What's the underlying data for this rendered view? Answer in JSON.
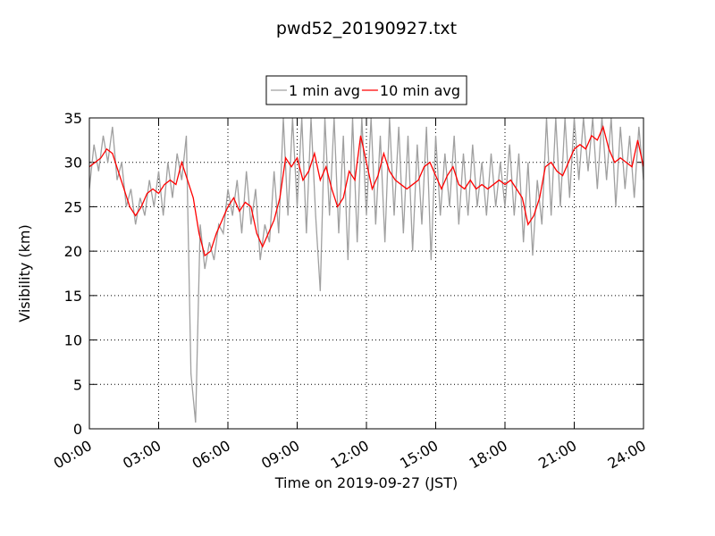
{
  "chart_data": {
    "type": "line",
    "title": "pwd52_20190927.txt",
    "x_label": "Time on 2019-09-27 (JST)",
    "y_label": "Visibility (km)",
    "xlim": [
      0,
      24
    ],
    "xticks": [
      {
        "value": 0,
        "label": "00:00"
      },
      {
        "value": 3,
        "label": "03:00"
      },
      {
        "value": 6,
        "label": "06:00"
      },
      {
        "value": 9,
        "label": "09:00"
      },
      {
        "value": 12,
        "label": "12:00"
      },
      {
        "value": 15,
        "label": "15:00"
      },
      {
        "value": 18,
        "label": "18:00"
      },
      {
        "value": 21,
        "label": "21:00"
      },
      {
        "value": 24,
        "label": "24:00"
      }
    ],
    "ylim": [
      0,
      35
    ],
    "yticks": [
      0,
      5,
      10,
      15,
      20,
      25,
      30,
      35
    ],
    "grid": true,
    "legend": "top-center",
    "series": [
      {
        "name": "1 min avg",
        "color": "#a0a0a0",
        "x": [
          0,
          0.2,
          0.4,
          0.6,
          0.8,
          1,
          1.2,
          1.4,
          1.6,
          1.8,
          2,
          2.2,
          2.4,
          2.6,
          2.8,
          3,
          3.2,
          3.4,
          3.6,
          3.8,
          4,
          4.2,
          4.4,
          4.6,
          4.8,
          5,
          5.2,
          5.4,
          5.6,
          5.8,
          6,
          6.2,
          6.4,
          6.6,
          6.8,
          7,
          7.2,
          7.4,
          7.6,
          7.8,
          8,
          8.2,
          8.4,
          8.6,
          8.8,
          9,
          9.2,
          9.4,
          9.6,
          9.8,
          10,
          10.2,
          10.4,
          10.6,
          10.8,
          11,
          11.2,
          11.4,
          11.6,
          11.8,
          12,
          12.2,
          12.4,
          12.6,
          12.8,
          13,
          13.2,
          13.4,
          13.6,
          13.8,
          14,
          14.2,
          14.4,
          14.6,
          14.8,
          15,
          15.2,
          15.4,
          15.6,
          15.8,
          16,
          16.2,
          16.4,
          16.6,
          16.8,
          17,
          17.2,
          17.4,
          17.6,
          17.8,
          18,
          18.2,
          18.4,
          18.6,
          18.8,
          19,
          19.2,
          19.4,
          19.6,
          19.8,
          20,
          20.2,
          20.4,
          20.6,
          20.8,
          21,
          21.2,
          21.4,
          21.6,
          21.8,
          22,
          22.2,
          22.4,
          22.6,
          22.8,
          23,
          23.2,
          23.4,
          23.6,
          23.8,
          24
        ],
        "values": [
          27,
          32,
          29,
          33,
          30,
          34,
          28,
          30,
          25,
          27,
          23,
          26,
          24,
          28,
          25,
          29,
          24,
          30,
          26,
          31,
          28,
          33,
          6.2,
          0.7,
          23,
          18,
          21,
          19,
          23,
          22,
          27,
          24,
          28,
          22,
          29,
          23,
          27,
          19,
          23,
          21,
          29,
          22,
          35,
          24,
          35,
          25,
          35,
          22,
          35,
          24,
          15.5,
          35,
          24,
          35,
          22,
          33,
          19,
          35,
          21,
          35,
          24,
          35,
          23,
          33,
          21,
          35,
          24,
          34,
          22,
          33,
          20,
          32,
          23,
          34,
          19,
          33,
          24,
          31,
          25,
          33,
          23,
          31,
          24,
          32,
          25,
          30,
          24,
          31,
          25,
          30,
          25,
          32,
          24,
          31,
          21,
          30,
          19.5,
          28,
          23,
          35,
          24,
          35,
          25,
          35,
          26,
          35,
          28,
          35,
          29,
          35,
          27,
          35,
          28,
          35,
          25,
          34,
          27,
          33,
          26,
          34,
          28
        ]
      },
      {
        "name": "10 min avg",
        "color": "#ff0000",
        "x": [
          0,
          0.25,
          0.5,
          0.75,
          1,
          1.25,
          1.5,
          1.75,
          2,
          2.25,
          2.5,
          2.75,
          3,
          3.25,
          3.5,
          3.75,
          4,
          4.25,
          4.5,
          4.75,
          5,
          5.25,
          5.5,
          5.75,
          6,
          6.25,
          6.5,
          6.75,
          7,
          7.25,
          7.5,
          7.75,
          8,
          8.25,
          8.5,
          8.75,
          9,
          9.25,
          9.5,
          9.75,
          10,
          10.25,
          10.5,
          10.75,
          11,
          11.25,
          11.5,
          11.75,
          12,
          12.25,
          12.5,
          12.75,
          13,
          13.25,
          13.5,
          13.75,
          14,
          14.25,
          14.5,
          14.75,
          15,
          15.25,
          15.5,
          15.75,
          16,
          16.25,
          16.5,
          16.75,
          17,
          17.25,
          17.5,
          17.75,
          18,
          18.25,
          18.5,
          18.75,
          19,
          19.25,
          19.5,
          19.75,
          20,
          20.25,
          20.5,
          20.75,
          21,
          21.25,
          21.5,
          21.75,
          22,
          22.25,
          22.5,
          22.75,
          23,
          23.25,
          23.5,
          23.75,
          24
        ],
        "values": [
          29.5,
          30,
          30.5,
          31.5,
          31,
          29,
          27,
          25,
          24,
          25,
          26.5,
          27,
          26.5,
          27.5,
          28,
          27.5,
          30,
          28,
          26,
          22,
          19.5,
          20,
          22,
          23.5,
          25,
          26,
          24.5,
          25.5,
          25,
          22,
          20.5,
          22,
          23.5,
          26,
          30.5,
          29.5,
          30.5,
          28,
          29,
          31,
          28,
          29.5,
          27,
          25,
          26,
          29,
          28,
          33,
          30,
          27,
          28.5,
          31,
          29,
          28,
          27.5,
          27,
          27.5,
          28,
          29.5,
          30,
          28.5,
          27,
          28.5,
          29.5,
          27.5,
          27,
          28,
          27,
          27.5,
          27,
          27.5,
          28,
          27.5,
          28,
          27,
          26,
          23,
          24,
          26,
          29.5,
          30,
          29,
          28.5,
          30,
          31.5,
          32,
          31.5,
          33,
          32.5,
          34,
          31.5,
          30,
          30.5,
          30,
          29.5,
          32.5,
          29.5
        ]
      }
    ]
  }
}
